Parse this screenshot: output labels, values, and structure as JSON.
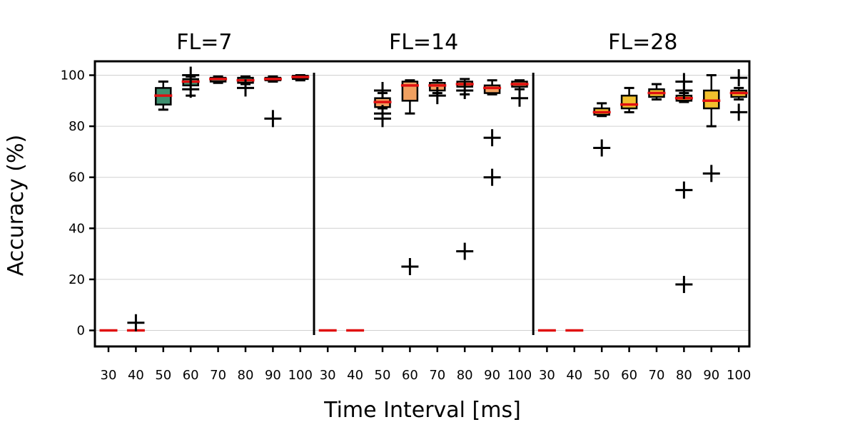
{
  "chart_data": {
    "type": "box",
    "xlabel": "Time Interval [ms]",
    "ylabel": "Accuracy (%)",
    "ylim": [
      -6,
      105
    ],
    "yticks": [
      0,
      20,
      40,
      60,
      80,
      100
    ],
    "grid": "horizontal",
    "categories": [
      "30",
      "40",
      "50",
      "60",
      "70",
      "80",
      "90",
      "100"
    ],
    "panels": [
      {
        "title": "FL=7",
        "color": "#3f8f6f",
        "boxes": [
          {
            "cat": "30",
            "q1": 0,
            "med": 0,
            "q3": 0,
            "wlo": 0,
            "whi": 0,
            "outliers": []
          },
          {
            "cat": "40",
            "q1": 0,
            "med": 0,
            "q3": 0,
            "wlo": 0,
            "whi": 0,
            "outliers": [
              3
            ]
          },
          {
            "cat": "50",
            "q1": 88.5,
            "med": 92,
            "q3": 95,
            "wlo": 86.5,
            "whi": 97.5,
            "outliers": []
          },
          {
            "cat": "60",
            "q1": 96,
            "med": 97.5,
            "q3": 98.5,
            "wlo": 92,
            "whi": 99.5,
            "outliers": [
              100,
              94.5
            ]
          },
          {
            "cat": "70",
            "q1": 97.5,
            "med": 98.5,
            "q3": 99,
            "wlo": 97,
            "whi": 99.5,
            "outliers": []
          },
          {
            "cat": "80",
            "q1": 97,
            "med": 98,
            "q3": 99,
            "wlo": 96.5,
            "whi": 99.5,
            "outliers": [
              95
            ]
          },
          {
            "cat": "90",
            "q1": 98,
            "med": 98.5,
            "q3": 99,
            "wlo": 97.5,
            "whi": 99.5,
            "outliers": [
              83
            ]
          },
          {
            "cat": "100",
            "q1": 98.5,
            "med": 99.3,
            "q3": 99.8,
            "wlo": 98,
            "whi": 100,
            "outliers": []
          }
        ]
      },
      {
        "title": "FL=14",
        "color": "#f0a060",
        "boxes": [
          {
            "cat": "30",
            "q1": 0,
            "med": 0,
            "q3": 0,
            "wlo": 0,
            "whi": 0,
            "outliers": []
          },
          {
            "cat": "40",
            "q1": 0,
            "med": 0,
            "q3": 0,
            "wlo": 0,
            "whi": 0,
            "outliers": []
          },
          {
            "cat": "50",
            "q1": 87.5,
            "med": 89.5,
            "q3": 91,
            "wlo": 87,
            "whi": 93,
            "outliers": [
              94,
              85,
              83
            ]
          },
          {
            "cat": "60",
            "q1": 90,
            "med": 96,
            "q3": 97.5,
            "wlo": 85,
            "whi": 98,
            "outliers": [
              25
            ]
          },
          {
            "cat": "70",
            "q1": 94,
            "med": 96,
            "q3": 97,
            "wlo": 93,
            "whi": 98,
            "outliers": [
              92
            ]
          },
          {
            "cat": "80",
            "q1": 95.5,
            "med": 96.5,
            "q3": 97.5,
            "wlo": 92.5,
            "whi": 98.5,
            "outliers": [
              94,
              31
            ]
          },
          {
            "cat": "90",
            "q1": 93,
            "med": 95,
            "q3": 96,
            "wlo": 92.5,
            "whi": 98,
            "outliers": [
              75.5,
              60
            ]
          },
          {
            "cat": "100",
            "q1": 95.5,
            "med": 96.5,
            "q3": 97.5,
            "wlo": 94.5,
            "whi": 98,
            "outliers": [
              91
            ]
          }
        ]
      },
      {
        "title": "FL=28",
        "color": "#f2c12e",
        "boxes": [
          {
            "cat": "30",
            "q1": 0,
            "med": 0,
            "q3": 0,
            "wlo": 0,
            "whi": 0,
            "outliers": []
          },
          {
            "cat": "40",
            "q1": 0,
            "med": 0,
            "q3": 0,
            "wlo": 0,
            "whi": 0,
            "outliers": []
          },
          {
            "cat": "50",
            "q1": 84.5,
            "med": 85.5,
            "q3": 87,
            "wlo": 84,
            "whi": 89,
            "outliers": [
              71.5
            ]
          },
          {
            "cat": "60",
            "q1": 87,
            "med": 88.5,
            "q3": 92,
            "wlo": 85.5,
            "whi": 95,
            "outliers": []
          },
          {
            "cat": "70",
            "q1": 91.5,
            "med": 93,
            "q3": 94.5,
            "wlo": 90.5,
            "whi": 96.5,
            "outliers": []
          },
          {
            "cat": "80",
            "q1": 90,
            "med": 91,
            "q3": 92,
            "wlo": 89.5,
            "whi": 93,
            "outliers": [
              97.5,
              94,
              55,
              18
            ]
          },
          {
            "cat": "90",
            "q1": 87,
            "med": 90,
            "q3": 94,
            "wlo": 80,
            "whi": 100,
            "outliers": [
              61.5
            ]
          },
          {
            "cat": "100",
            "q1": 91.5,
            "med": 93,
            "q3": 94,
            "wlo": 90.5,
            "whi": 95,
            "outliers": [
              99,
              85.5
            ]
          }
        ]
      }
    ]
  }
}
